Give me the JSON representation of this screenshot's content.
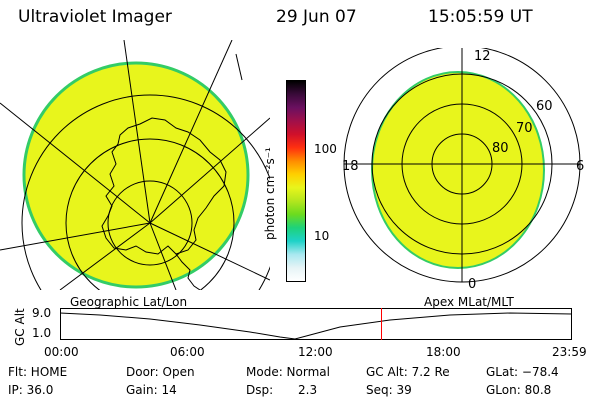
{
  "header": {
    "instrument": "Ultraviolet Imager",
    "date": "29 Jun 07",
    "time": "15:05:59 UT"
  },
  "colors": {
    "image_fill": "#e8f51c",
    "image_edge": "#33cc66",
    "grid": "#000000",
    "marker": "#ff0000"
  },
  "colorbar": {
    "unit_label": "photon cm⁻²s⁻¹",
    "ticks": [
      "100",
      "10"
    ],
    "stops": [
      "#000000",
      "#3a0a3a",
      "#6b1060",
      "#a0104a",
      "#d0102a",
      "#ff3010",
      "#ff8c00",
      "#ffd000",
      "#e8f51c",
      "#b4e61e",
      "#6cdb1e",
      "#1ed27a",
      "#1ed2c8",
      "#a8e8f0",
      "#e6f4f6",
      "#ffffff"
    ]
  },
  "polar_plot": {
    "mlt_labels": {
      "top": "12",
      "left": "18",
      "right": "6",
      "bottom": "0"
    },
    "lat_labels": [
      "60",
      "70",
      "80"
    ]
  },
  "orbit": {
    "label_left": "Geographic Lat/Lon",
    "label_right": "Apex MLat/MLT",
    "y_axis_label": "GC Alt",
    "y_ticks": [
      "9.0",
      "1.0"
    ],
    "x_ticks": [
      "00:00",
      "06:00",
      "12:00",
      "18:00",
      "23:59"
    ],
    "current_time_fraction": 0.628
  },
  "footer": {
    "row1": {
      "flt": "Flt: HOME",
      "door": "Door: Open",
      "mode": "Mode: Normal",
      "gcalt": "GC Alt: 7.2 Re",
      "glat": "GLat: −78.4"
    },
    "row2": {
      "ip": "IP: 36.0",
      "gain": "Gain: 14",
      "dsp_label": "Dsp:",
      "dsp_value": "2.3",
      "seq": "Seq: 39",
      "glon": "GLon: 80.8"
    }
  }
}
